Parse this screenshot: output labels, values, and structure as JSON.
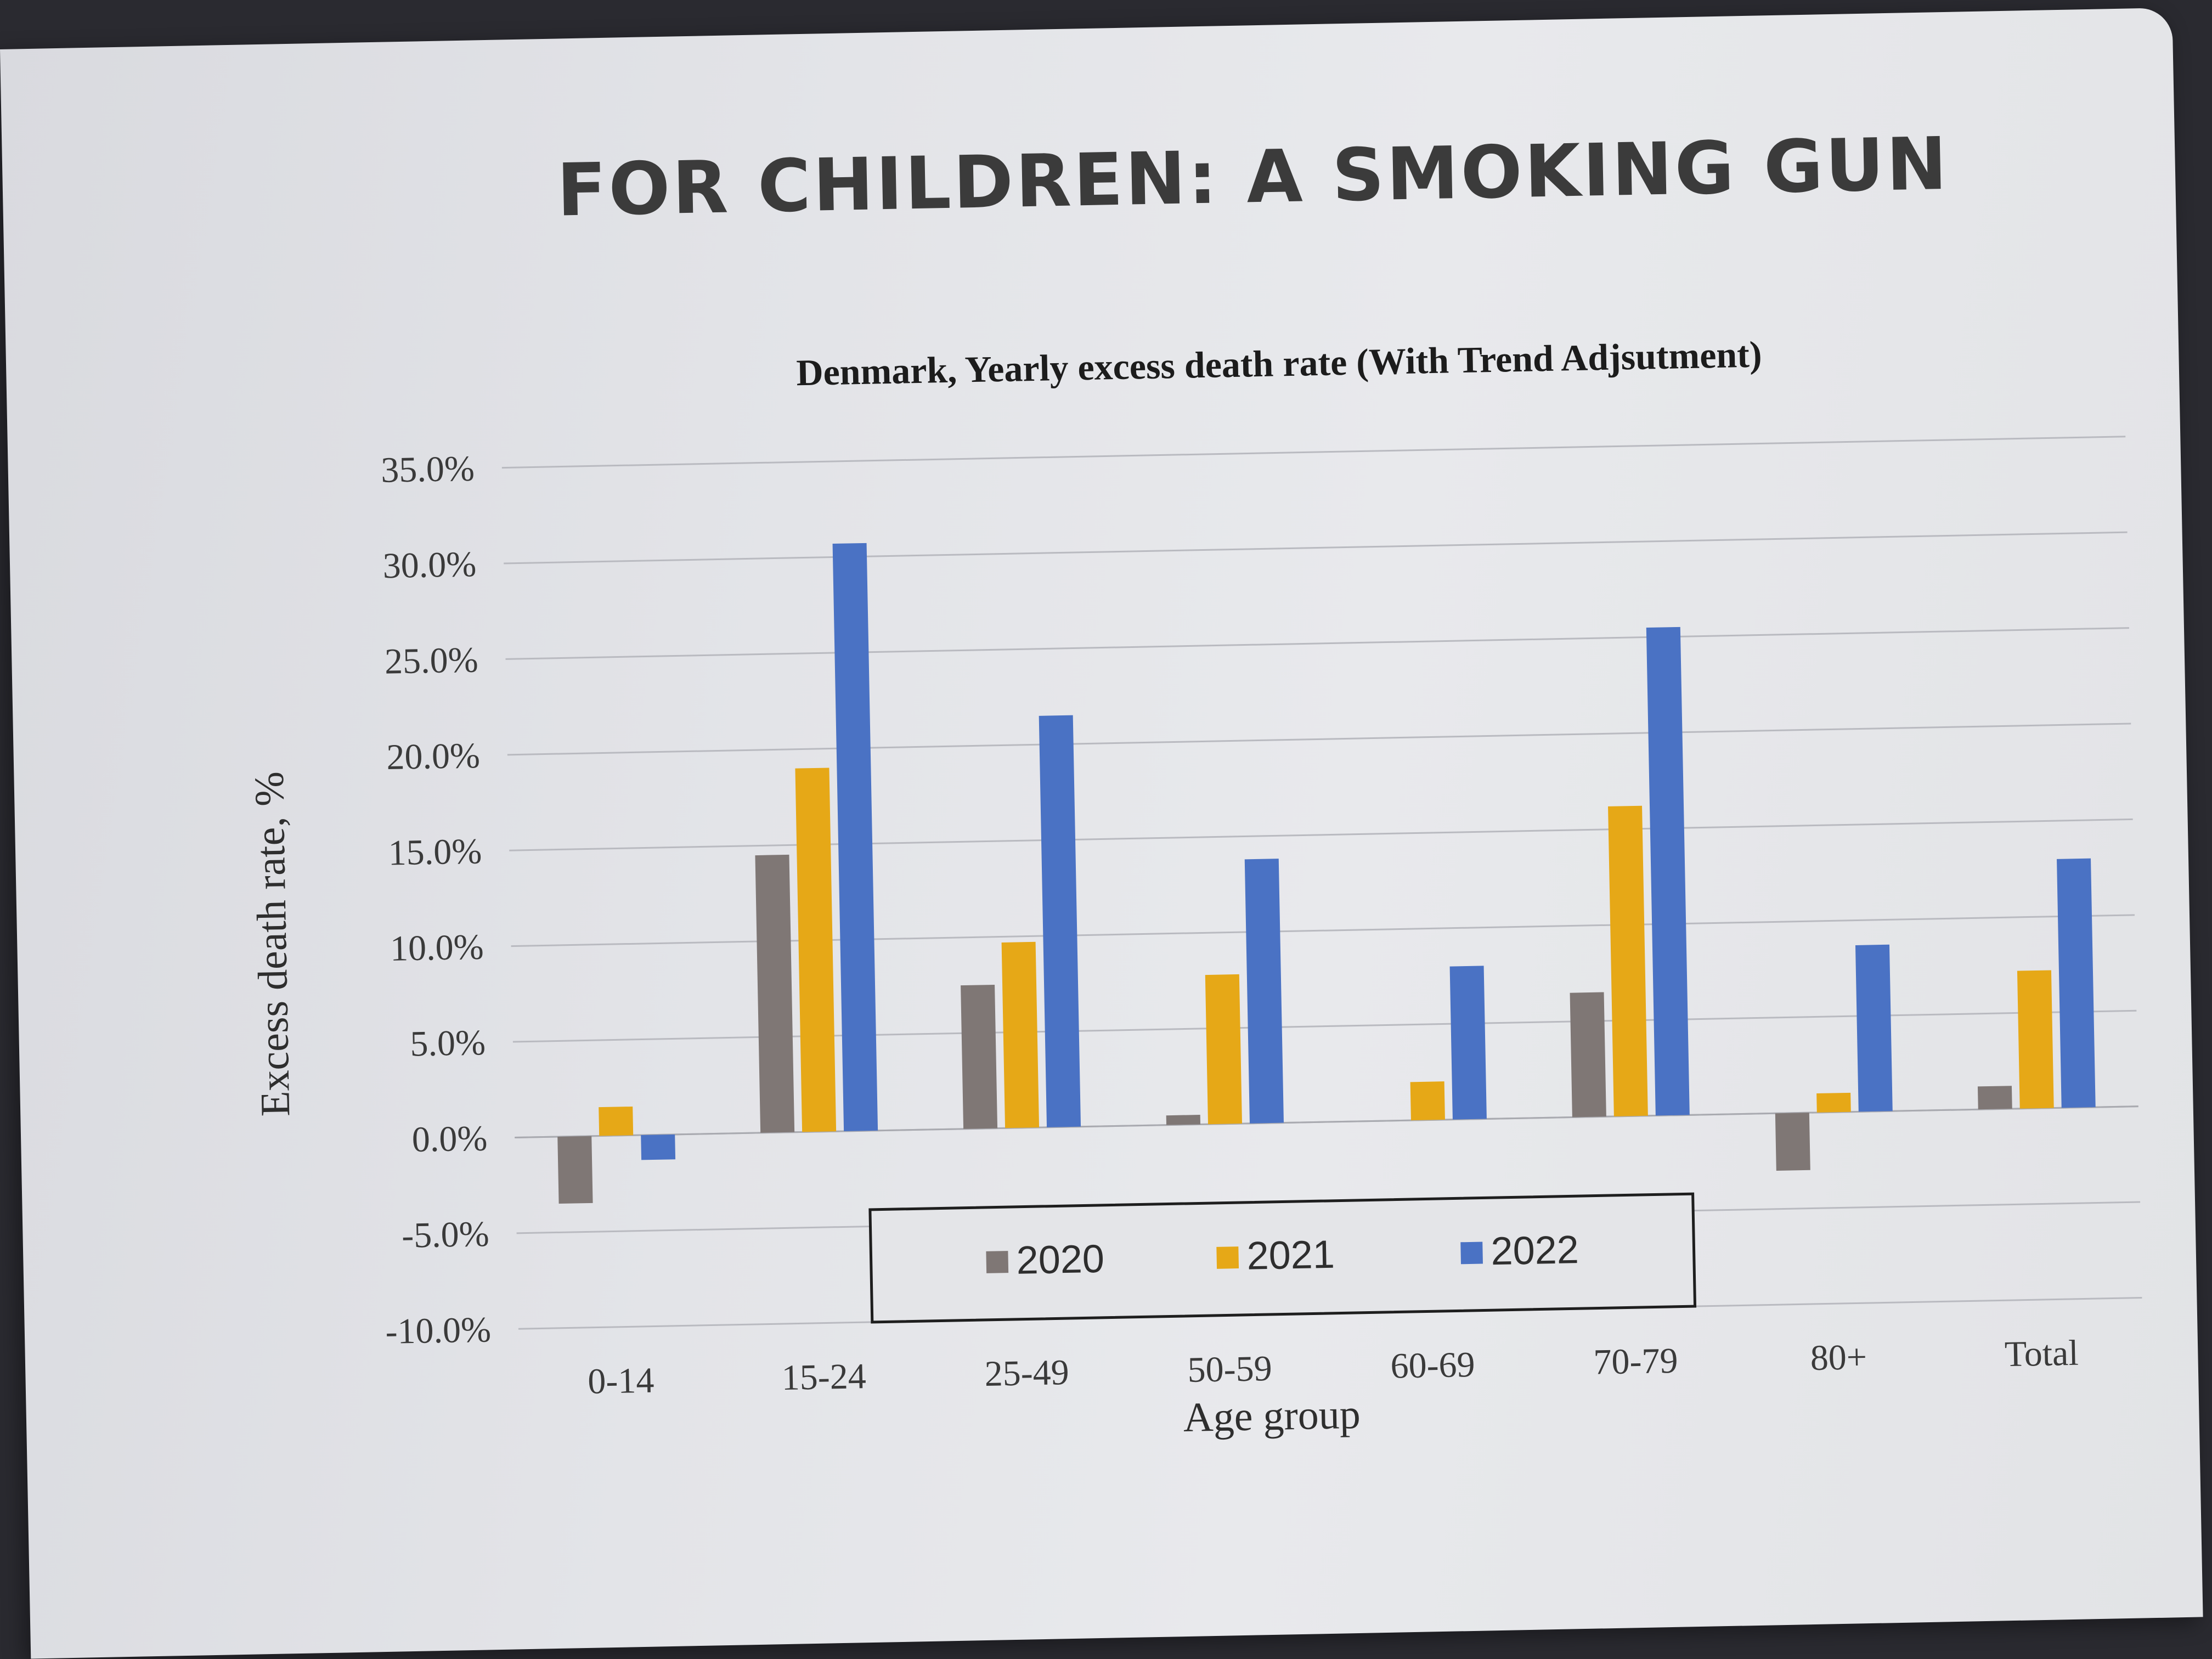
{
  "heading": "FOR CHILDREN: A SMOKING GUN",
  "chart_data": {
    "type": "bar",
    "title": "Denmark, Yearly excess death rate (With Trend Adjsutment)",
    "xlabel": "Age group",
    "ylabel": "Excess death rate, %",
    "categories": [
      "0-14",
      "15-24",
      "25-49",
      "50-59",
      "60-69",
      "70-79",
      "80+",
      "Total"
    ],
    "series": [
      {
        "name": "2020",
        "color": "#7f7775",
        "values": [
          -3.5,
          14.5,
          7.5,
          0.5,
          0.0,
          6.5,
          -3.0,
          1.2
        ]
      },
      {
        "name": "2021",
        "color": "#e6a817",
        "values": [
          1.5,
          19.0,
          9.7,
          7.8,
          2.0,
          16.2,
          1.0,
          7.2
        ]
      },
      {
        "name": "2022",
        "color": "#4a72c4",
        "values": [
          -1.3,
          30.7,
          21.5,
          13.8,
          8.0,
          25.5,
          8.7,
          13.0
        ]
      }
    ],
    "ylim": [
      -10,
      35
    ],
    "yticks": [
      35,
      30,
      25,
      20,
      15,
      10,
      5,
      0,
      -5,
      -10
    ],
    "ytick_labels": [
      "35.0%",
      "30.0%",
      "25.0%",
      "20.0%",
      "15.0%",
      "10.0%",
      "5.0%",
      "0.0%",
      "-5.0%",
      "-10.0%"
    ],
    "grid": true,
    "legend_position": "bottom-center"
  }
}
